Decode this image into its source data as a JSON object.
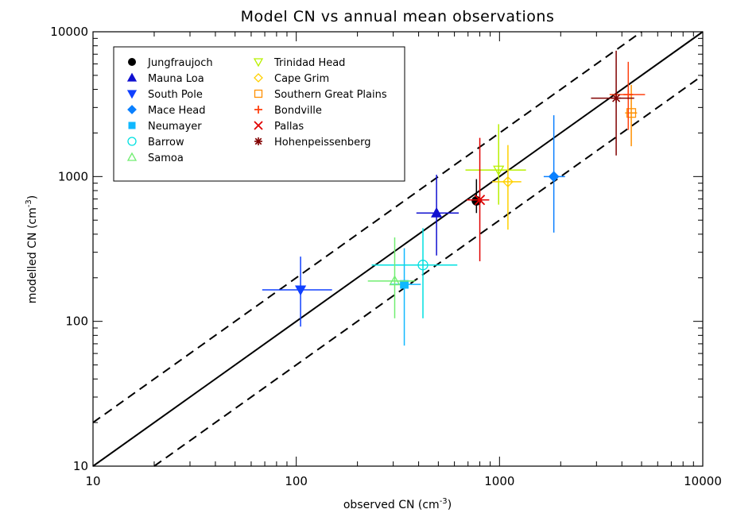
{
  "chart_data": {
    "type": "scatter",
    "title": "Model CN vs annual mean observations",
    "xlabel": "observed CN (cm",
    "ylabel": "modelled CN (cm",
    "axis_unit_sup": "-3",
    "axis_unit_close": ")",
    "x_scale": "log",
    "y_scale": "log",
    "xlim": [
      10,
      10000
    ],
    "ylim": [
      10,
      10000
    ],
    "x_ticks": [
      10,
      100,
      1000,
      10000
    ],
    "y_ticks": [
      10,
      100,
      1000,
      10000
    ],
    "x_tick_labels": [
      "10",
      "100",
      "1000",
      "10000"
    ],
    "y_tick_labels": [
      "10",
      "100",
      "1000",
      "10000"
    ],
    "grid": false,
    "legend_position": "top-left",
    "reference_lines": [
      {
        "style": "solid",
        "ratio": 1
      },
      {
        "style": "dashed",
        "ratio": 2
      },
      {
        "style": "dashed",
        "ratio": 0.5
      }
    ],
    "series": [
      {
        "name": "Jungfraujoch",
        "marker": "filled-circle",
        "color": "#000000",
        "x": 770,
        "y": 680,
        "xerr": [
          730,
          820
        ],
        "yerr": [
          560,
          960
        ]
      },
      {
        "name": "Mauna Loa",
        "marker": "filled-triangle-up",
        "color": "#1010d0",
        "x": 490,
        "y": 560,
        "xerr": [
          390,
          630
        ],
        "yerr": [
          285,
          1030
        ]
      },
      {
        "name": "South Pole",
        "marker": "filled-triangle-down",
        "color": "#1040ff",
        "x": 105,
        "y": 165,
        "xerr": [
          68,
          150
        ],
        "yerr": [
          92,
          280
        ]
      },
      {
        "name": "Mace Head",
        "marker": "filled-diamond",
        "color": "#0a80ff",
        "x": 1850,
        "y": 1000,
        "xerr": [
          1650,
          2100
        ],
        "yerr": [
          410,
          2650
        ]
      },
      {
        "name": "Neumayer",
        "marker": "filled-square",
        "color": "#10b8ff",
        "x": 340,
        "y": 180,
        "xerr": [
          290,
          410
        ],
        "yerr": [
          68,
          320
        ]
      },
      {
        "name": "Barrow",
        "marker": "open-circle",
        "color": "#00e0e0",
        "x": 420,
        "y": 245,
        "xerr": [
          235,
          620
        ],
        "yerr": [
          105,
          440
        ]
      },
      {
        "name": "Samoa",
        "marker": "open-triangle-up",
        "color": "#70ee70",
        "x": 305,
        "y": 190,
        "xerr": [
          225,
          385
        ],
        "yerr": [
          105,
          380
        ]
      },
      {
        "name": "Trinidad Head",
        "marker": "open-triangle-down",
        "color": "#b8f000",
        "x": 990,
        "y": 1110,
        "xerr": [
          680,
          1350
        ],
        "yerr": [
          640,
          2300
        ]
      },
      {
        "name": "Cape Grim",
        "marker": "open-diamond",
        "color": "#ffd000",
        "x": 1100,
        "y": 920,
        "xerr": [
          920,
          1280
        ],
        "yerr": [
          430,
          1650
        ]
      },
      {
        "name": "Southern Great Plains",
        "marker": "open-square",
        "color": "#ff9000",
        "x": 4450,
        "y": 2750,
        "xerr": [
          4150,
          4750
        ],
        "yerr": [
          1620,
          4300
        ]
      },
      {
        "name": "Bondville",
        "marker": "plus",
        "color": "#ff4010",
        "x": 4300,
        "y": 3680,
        "xerr": [
          3480,
          5200
        ],
        "yerr": [
          2100,
          6200
        ]
      },
      {
        "name": "Pallas",
        "marker": "x",
        "color": "#e00000",
        "x": 800,
        "y": 690,
        "xerr": [
          690,
          890
        ],
        "yerr": [
          260,
          1850
        ]
      },
      {
        "name": "Hohenpeissenberg",
        "marker": "asterisk",
        "color": "#800000",
        "x": 3750,
        "y": 3480,
        "xerr": [
          2820,
          4600
        ],
        "yerr": [
          1400,
          7400
        ]
      }
    ]
  }
}
